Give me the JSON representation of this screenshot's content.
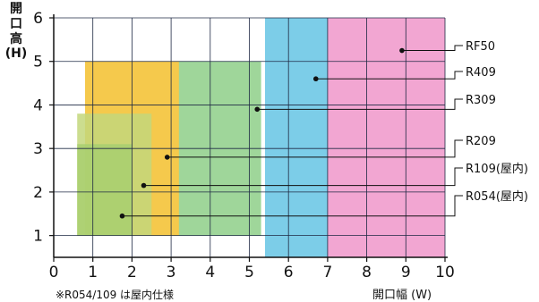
{
  "chart_data": {
    "type": "area",
    "xlabel": "開口幅 (W)",
    "ylabel_lines": [
      "開",
      "口",
      "高",
      "(H)"
    ],
    "note": "※R054/109 は屋内仕様",
    "xlim": [
      0,
      10
    ],
    "ylim": [
      0.5,
      6
    ],
    "x_ticks": [
      "0",
      "1",
      "2",
      "3",
      "4",
      "5",
      "6",
      "7",
      "8",
      "9",
      "10"
    ],
    "y_ticks": [
      "1",
      "2",
      "3",
      "4",
      "5",
      "6"
    ],
    "grid": true,
    "series": [
      {
        "name": "RF50",
        "color": "#f2a6d2",
        "x": [
          7.0,
          10.0
        ],
        "y": [
          0.5,
          6.0
        ],
        "marker": [
          8.9,
          5.25
        ]
      },
      {
        "name": "R409",
        "color": "#7ccde8",
        "x": [
          5.4,
          7.0
        ],
        "y": [
          0.5,
          6.0
        ],
        "marker": [
          6.7,
          4.6
        ]
      },
      {
        "name": "R309",
        "color": "#9fd69a",
        "x": [
          3.1,
          5.3
        ],
        "y": [
          1.0,
          5.0
        ],
        "marker": [
          5.2,
          3.9
        ]
      },
      {
        "name": "R209",
        "color": "#f5c94c",
        "x": [
          0.8,
          3.2
        ],
        "y": [
          1.0,
          5.0
        ],
        "marker": [
          2.9,
          2.8
        ]
      },
      {
        "name": "R109(屋内)",
        "color": "#c3d77b",
        "x": [
          0.6,
          2.5
        ],
        "y": [
          1.0,
          3.8
        ],
        "marker": [
          2.3,
          2.15
        ]
      },
      {
        "name": "R054(屋内)",
        "color": "#a8cf70",
        "x": [
          0.6,
          2.0
        ],
        "y": [
          1.0,
          3.1
        ],
        "marker": [
          1.75,
          1.45
        ]
      }
    ]
  }
}
